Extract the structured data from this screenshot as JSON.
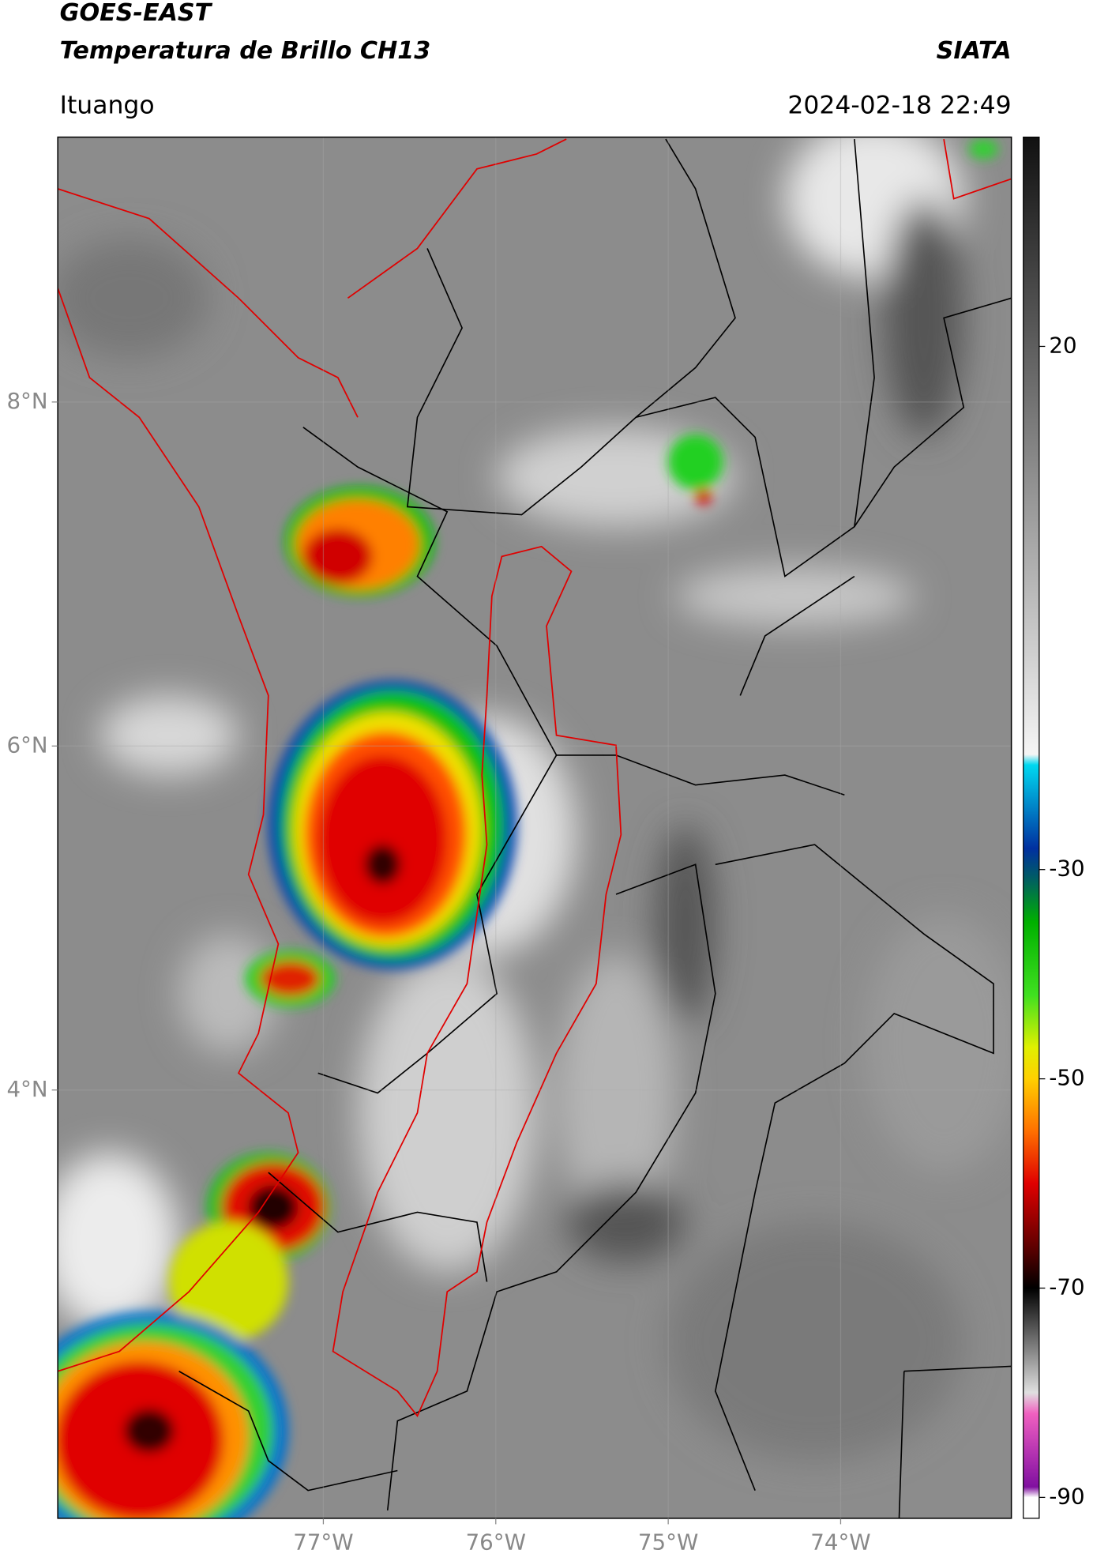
{
  "header": {
    "title": "GOES-EAST",
    "subtitle": "Temperatura de Brillo CH13",
    "agency": "SIATA",
    "location": "Ituango",
    "timestamp": "2024-02-18 22:49"
  },
  "map": {
    "xlim": [
      -78.54,
      -73.01
    ],
    "ylim": [
      1.51,
      9.54
    ],
    "xticks": [
      {
        "value": -77,
        "label": "77°W"
      },
      {
        "value": -76,
        "label": "76°W"
      },
      {
        "value": -75,
        "label": "75°W"
      },
      {
        "value": -74,
        "label": "74°W"
      }
    ],
    "yticks": [
      {
        "value": 8,
        "label": "8°N"
      },
      {
        "value": 6,
        "label": "6°N"
      },
      {
        "value": 4,
        "label": "4°N"
      }
    ],
    "grid": true
  },
  "colorbar": {
    "lim": [
      -92,
      40
    ],
    "ticks": [
      20,
      -30,
      -50,
      -70,
      -90
    ],
    "stops": [
      {
        "value": 40,
        "color": "#111111"
      },
      {
        "value": -19,
        "color": "#f5f5f5"
      },
      {
        "value": -20,
        "color": "#00d8f0"
      },
      {
        "value": -28,
        "color": "#0030a0"
      },
      {
        "value": -31,
        "color": "#006060"
      },
      {
        "value": -35,
        "color": "#00b000"
      },
      {
        "value": -42,
        "color": "#40e020"
      },
      {
        "value": -47,
        "color": "#e0f000"
      },
      {
        "value": -50,
        "color": "#ffd000"
      },
      {
        "value": -55,
        "color": "#ff7000"
      },
      {
        "value": -60,
        "color": "#e00000"
      },
      {
        "value": -66,
        "color": "#600000"
      },
      {
        "value": -70,
        "color": "#000000"
      },
      {
        "value": -75,
        "color": "#707070"
      },
      {
        "value": -80,
        "color": "#e0e0e0"
      },
      {
        "value": -82,
        "color": "#f060c0"
      },
      {
        "value": -86,
        "color": "#b030b0"
      },
      {
        "value": -89,
        "color": "#8010a0"
      },
      {
        "value": -90,
        "color": "#ffffff"
      }
    ]
  }
}
